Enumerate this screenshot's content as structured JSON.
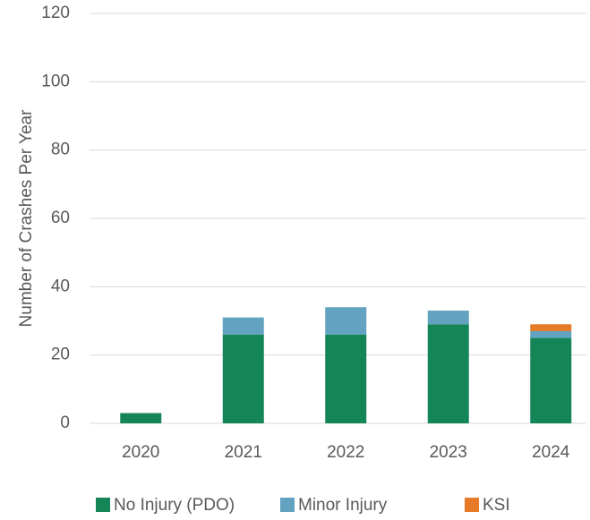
{
  "chart_data": {
    "type": "stacked_bar",
    "y_label": "Number of Crashes Per Year",
    "categories": [
      "2020",
      "2021",
      "2022",
      "2023",
      "2024"
    ],
    "series": [
      {
        "name": "No Injury (PDO)",
        "color": "#138556",
        "values": [
          3,
          26,
          26,
          29,
          25
        ]
      },
      {
        "name": "Minor Injury",
        "color": "#63a2c0",
        "values": [
          0,
          5,
          8,
          4,
          2
        ]
      },
      {
        "name": "KSI",
        "color": "#e67a26",
        "values": [
          0,
          0,
          0,
          0,
          2
        ]
      }
    ],
    "ylim": [
      0,
      120
    ],
    "yticks": [
      0,
      20,
      40,
      60,
      80,
      100,
      120
    ],
    "grid": true,
    "legend": "bottom"
  }
}
